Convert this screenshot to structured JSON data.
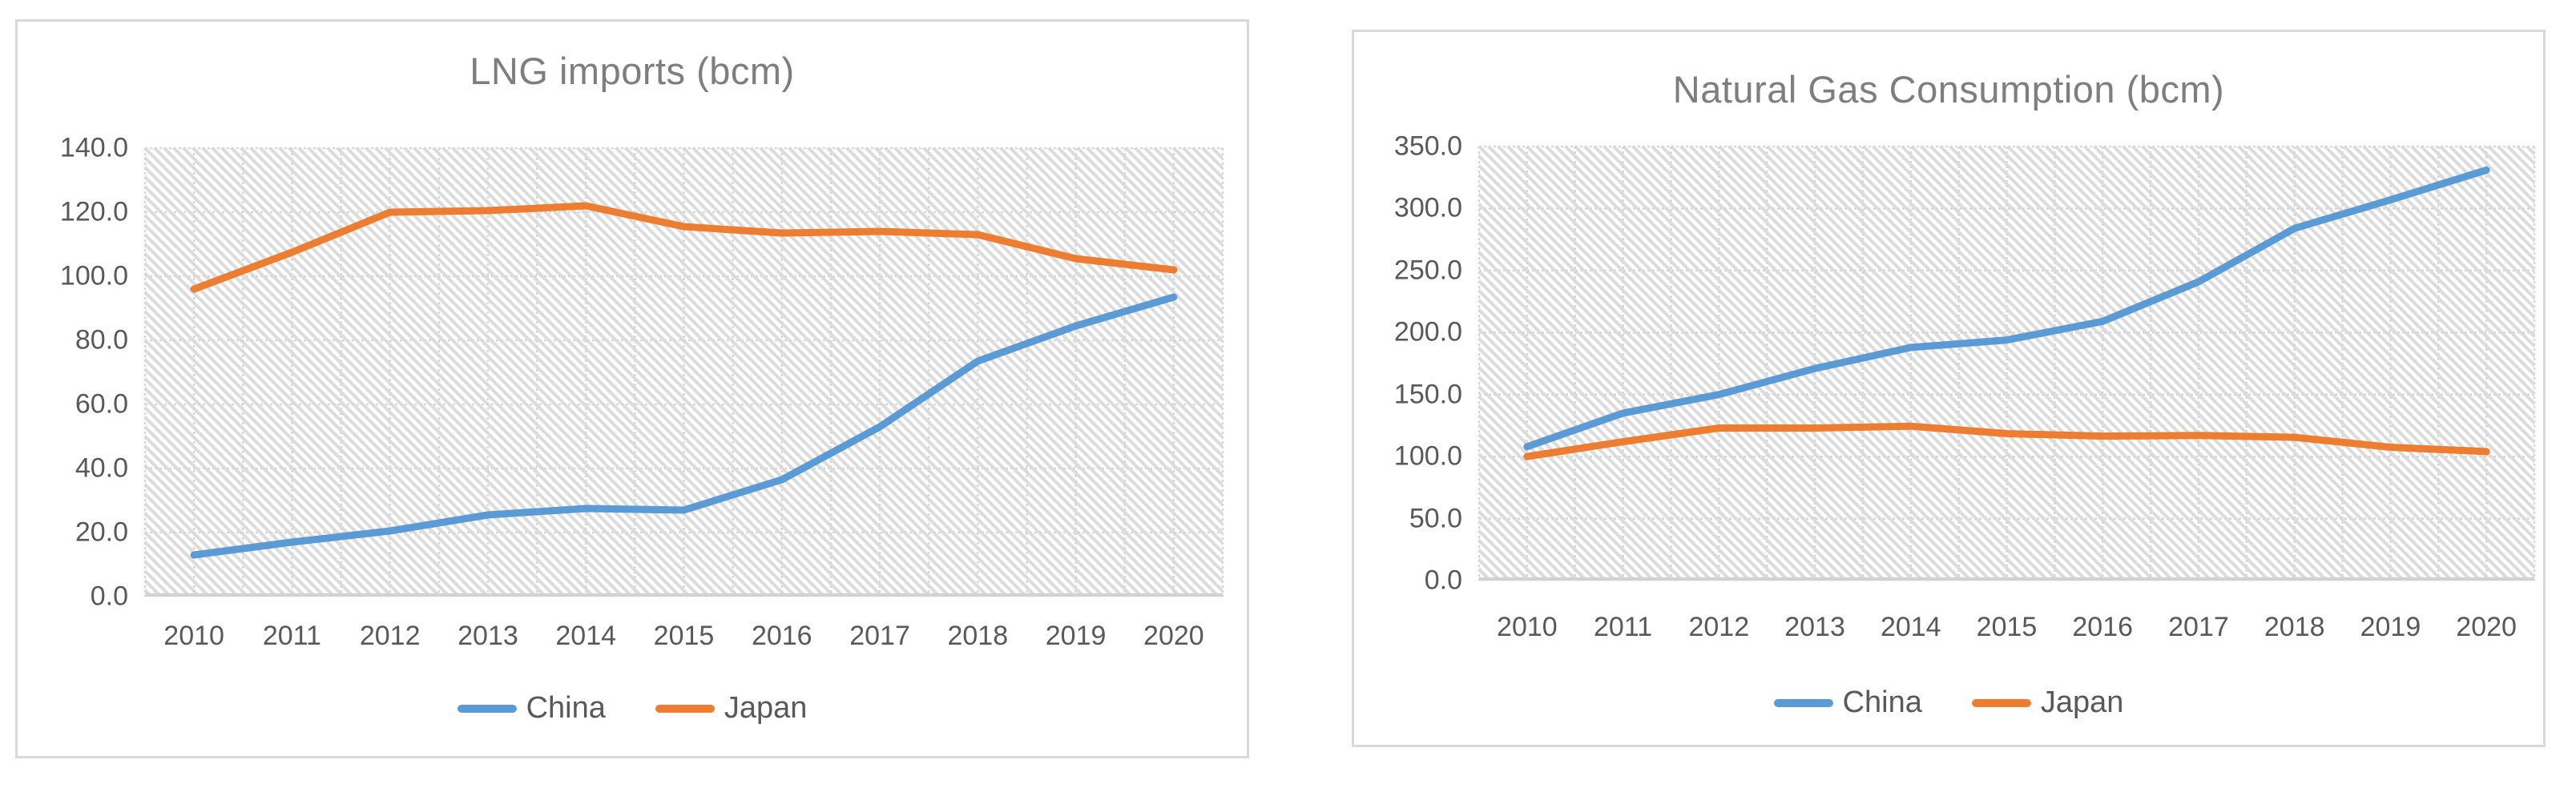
{
  "styles": {
    "series_blue": "#5B9BD5",
    "series_orange": "#ED7D31",
    "title_color": "#7E7E7E",
    "axis_text_color": "#595959",
    "gridline_color": "#D9D9D9",
    "axis_line_color": "#D2D2D2",
    "hatch_color": "#DCDCDC",
    "chart_border_color": "#D9D9D9"
  },
  "chart_data": [
    {
      "type": "line",
      "title": "LNG imports (bcm)",
      "xlabel": "",
      "ylabel": "",
      "categories": [
        "2010",
        "2011",
        "2012",
        "2013",
        "2014",
        "2015",
        "2016",
        "2017",
        "2018",
        "2019",
        "2020"
      ],
      "series": [
        {
          "name": "China",
          "color": "#5B9BD5",
          "values": [
            13.0,
            17.0,
            20.5,
            25.5,
            27.5,
            27.0,
            36.5,
            53.0,
            73.5,
            84.5,
            93.5
          ]
        },
        {
          "name": "Japan",
          "color": "#ED7D31",
          "values": [
            96.0,
            107.5,
            120.0,
            120.5,
            122.0,
            115.5,
            113.5,
            114.0,
            113.0,
            105.5,
            102.0
          ]
        }
      ],
      "ylim": [
        0,
        140
      ],
      "ytick_step": 20,
      "yticks": [
        "0.0",
        "20.0",
        "40.0",
        "60.0",
        "80.0",
        "100.0",
        "120.0",
        "140.0"
      ],
      "grid": true,
      "plot_fill": "diagonal-hatch",
      "legend_position": "bottom"
    },
    {
      "type": "line",
      "title": "Natural Gas Consumption (bcm)",
      "xlabel": "",
      "ylabel": "",
      "categories": [
        "2010",
        "2011",
        "2012",
        "2013",
        "2014",
        "2015",
        "2016",
        "2017",
        "2018",
        "2019",
        "2020"
      ],
      "series": [
        {
          "name": "China",
          "color": "#5B9BD5",
          "values": [
            108.0,
            135.0,
            150.0,
            171.0,
            188.0,
            194.0,
            209.0,
            241.0,
            284.0,
            307.0,
            331.0
          ]
        },
        {
          "name": "Japan",
          "color": "#ED7D31",
          "values": [
            100.0,
            112.0,
            123.0,
            123.0,
            124.5,
            118.5,
            116.5,
            117.0,
            115.5,
            107.5,
            104.0
          ]
        }
      ],
      "ylim": [
        0,
        350
      ],
      "ytick_step": 50,
      "yticks": [
        "0.0",
        "50.0",
        "100.0",
        "150.0",
        "200.0",
        "250.0",
        "300.0",
        "350.0"
      ],
      "grid": true,
      "plot_fill": "diagonal-hatch",
      "legend_position": "bottom"
    }
  ]
}
